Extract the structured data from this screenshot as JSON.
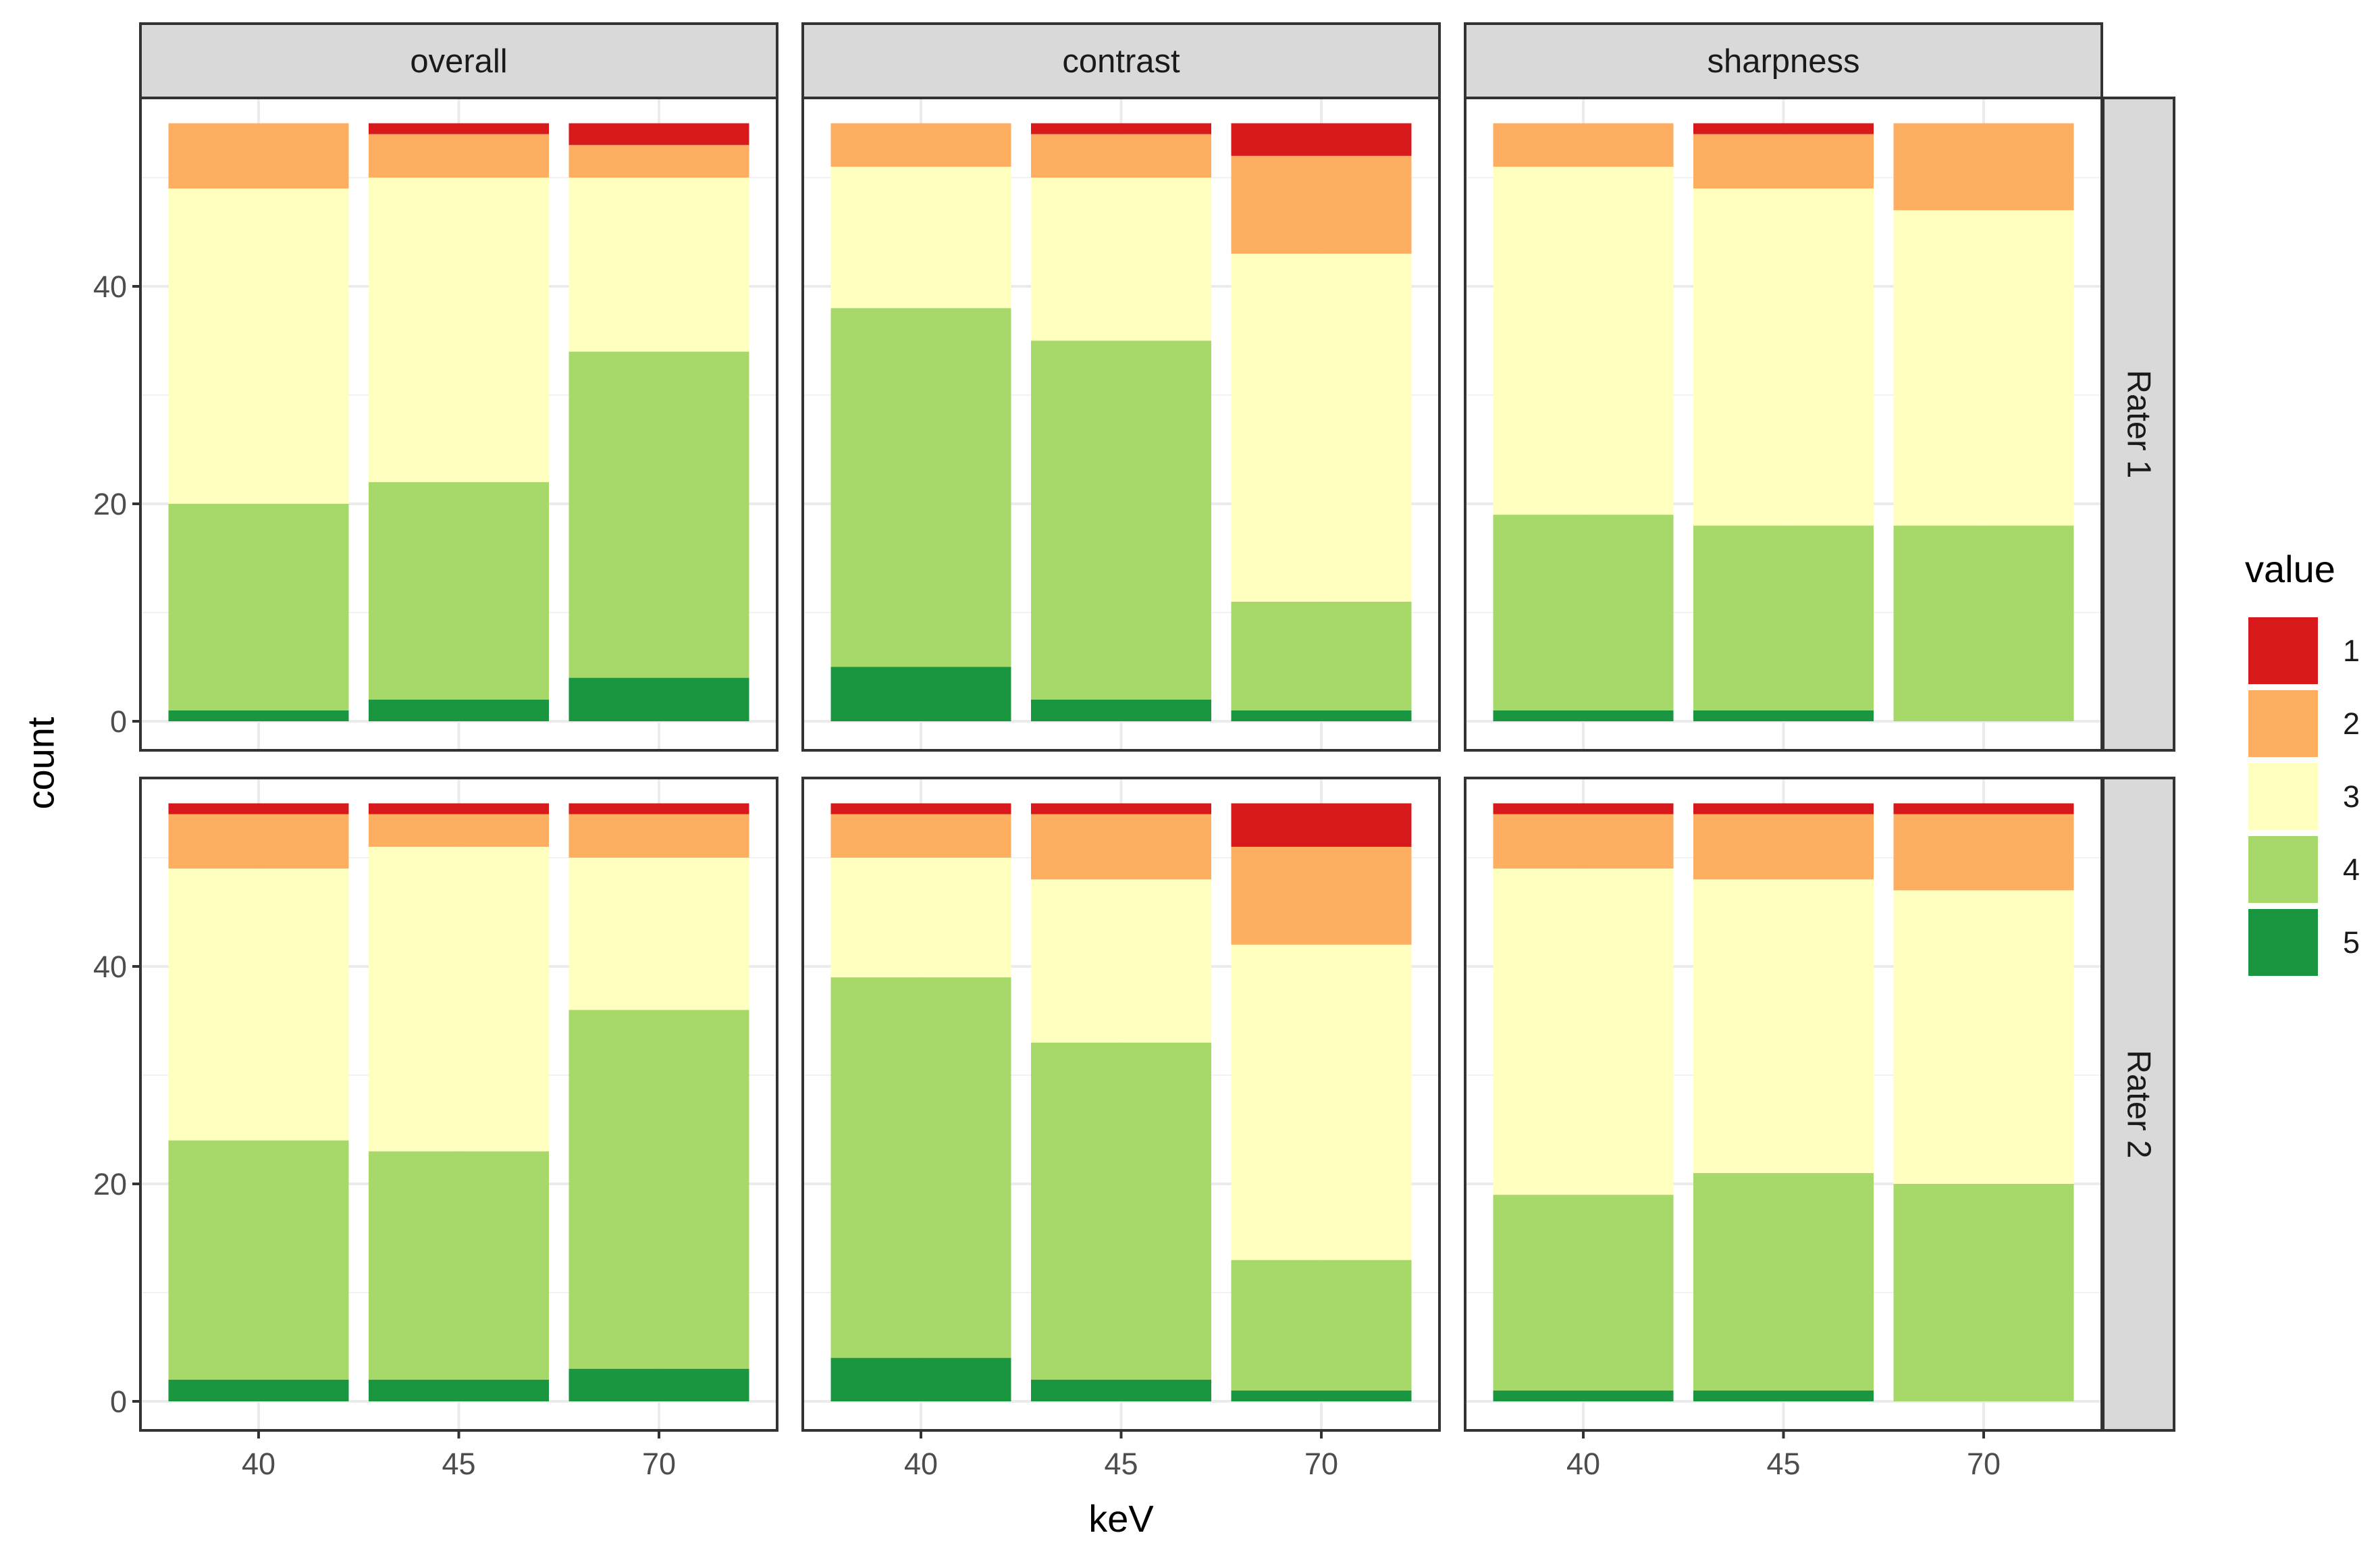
{
  "chart_data": {
    "type": "bar",
    "stacked": true,
    "x_title": "keV",
    "y_title": "count",
    "categories": [
      "40",
      "45",
      "70"
    ],
    "y_ticks": [
      0,
      20,
      40
    ],
    "ylim": [
      0,
      55
    ],
    "columns": [
      "overall",
      "contrast",
      "sharpness"
    ],
    "rows": [
      "Rater 1",
      "Rater 2"
    ],
    "legend": {
      "title": "value",
      "position": "right",
      "levels": [
        "1",
        "2",
        "3",
        "4",
        "5"
      ],
      "colors": [
        "#d7191c",
        "#fdae61",
        "#ffffbf",
        "#a6d96a",
        "#1a9641"
      ]
    },
    "grid": true,
    "stack_order_bottom_to_top": [
      "5",
      "4",
      "3",
      "2",
      "1"
    ],
    "panels": [
      {
        "row": "Rater 1",
        "column": "overall",
        "bars": [
          {
            "keV": "40",
            "counts": {
              "1": 0,
              "2": 6,
              "3": 29,
              "4": 19,
              "5": 1
            }
          },
          {
            "keV": "45",
            "counts": {
              "1": 1,
              "2": 4,
              "3": 28,
              "4": 20,
              "5": 2
            }
          },
          {
            "keV": "70",
            "counts": {
              "1": 2,
              "2": 3,
              "3": 16,
              "4": 30,
              "5": 4
            }
          }
        ]
      },
      {
        "row": "Rater 1",
        "column": "contrast",
        "bars": [
          {
            "keV": "40",
            "counts": {
              "1": 0,
              "2": 4,
              "3": 13,
              "4": 33,
              "5": 5
            }
          },
          {
            "keV": "45",
            "counts": {
              "1": 1,
              "2": 4,
              "3": 15,
              "4": 33,
              "5": 2
            }
          },
          {
            "keV": "70",
            "counts": {
              "1": 3,
              "2": 9,
              "3": 32,
              "4": 10,
              "5": 1
            }
          }
        ]
      },
      {
        "row": "Rater 1",
        "column": "sharpness",
        "bars": [
          {
            "keV": "40",
            "counts": {
              "1": 0,
              "2": 4,
              "3": 32,
              "4": 18,
              "5": 1
            }
          },
          {
            "keV": "45",
            "counts": {
              "1": 1,
              "2": 5,
              "3": 31,
              "4": 17,
              "5": 1
            }
          },
          {
            "keV": "70",
            "counts": {
              "1": 0,
              "2": 8,
              "3": 29,
              "4": 18,
              "5": 0
            }
          }
        ]
      },
      {
        "row": "Rater 2",
        "column": "overall",
        "bars": [
          {
            "keV": "40",
            "counts": {
              "1": 1,
              "2": 5,
              "3": 25,
              "4": 22,
              "5": 2
            }
          },
          {
            "keV": "45",
            "counts": {
              "1": 1,
              "2": 3,
              "3": 28,
              "4": 21,
              "5": 2
            }
          },
          {
            "keV": "70",
            "counts": {
              "1": 1,
              "2": 4,
              "3": 14,
              "4": 33,
              "5": 3
            }
          }
        ]
      },
      {
        "row": "Rater 2",
        "column": "contrast",
        "bars": [
          {
            "keV": "40",
            "counts": {
              "1": 1,
              "2": 4,
              "3": 11,
              "4": 35,
              "5": 4
            }
          },
          {
            "keV": "45",
            "counts": {
              "1": 1,
              "2": 6,
              "3": 15,
              "4": 31,
              "5": 2
            }
          },
          {
            "keV": "70",
            "counts": {
              "1": 4,
              "2": 9,
              "3": 29,
              "4": 12,
              "5": 1
            }
          }
        ]
      },
      {
        "row": "Rater 2",
        "column": "sharpness",
        "bars": [
          {
            "keV": "40",
            "counts": {
              "1": 1,
              "2": 5,
              "3": 30,
              "4": 18,
              "5": 1
            }
          },
          {
            "keV": "45",
            "counts": {
              "1": 1,
              "2": 6,
              "3": 27,
              "4": 20,
              "5": 1
            }
          },
          {
            "keV": "70",
            "counts": {
              "1": 1,
              "2": 7,
              "3": 27,
              "4": 20,
              "5": 0
            }
          }
        ]
      }
    ]
  }
}
